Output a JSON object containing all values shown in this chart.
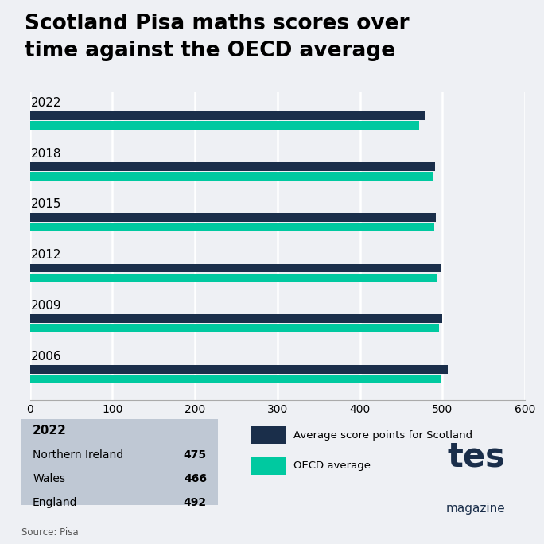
{
  "title_line1": "Scotland Pisa maths scores over",
  "title_line2": "time against the OECD average",
  "years": [
    "2022",
    "2018",
    "2015",
    "2012",
    "2009",
    "2006"
  ],
  "scotland_scores": [
    479,
    491,
    492,
    498,
    500,
    506
  ],
  "oecd_scores": [
    472,
    489,
    490,
    494,
    496,
    498
  ],
  "scotland_color": "#1a2e4a",
  "oecd_color": "#00c9a0",
  "background_color": "#eef0f4",
  "xlim": [
    0,
    600
  ],
  "xticks": [
    0,
    100,
    200,
    300,
    400,
    500,
    600
  ],
  "legend_scotland": "Average score points for Scotland",
  "legend_oecd": "OECD average",
  "annotation_title": "2022",
  "annotation_entries": [
    [
      "Northern Ireland",
      "475"
    ],
    [
      "Wales",
      "466"
    ],
    [
      "England",
      "492"
    ]
  ],
  "annotation_box_color": "#bfc8d4",
  "source_text": "Source: Pisa",
  "tes_text": "tes",
  "magazine_text": "magazine",
  "tes_color": "#1a2e4a"
}
